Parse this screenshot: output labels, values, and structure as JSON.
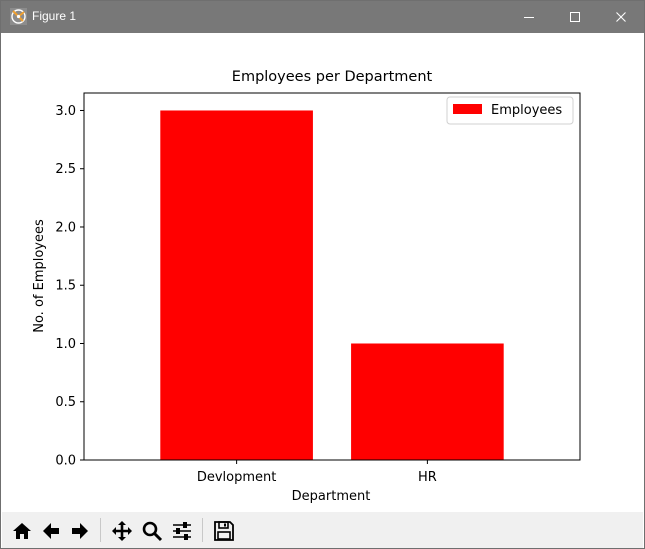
{
  "window": {
    "title": "Figure 1",
    "controls": [
      "minimize",
      "maximize",
      "close"
    ]
  },
  "toolbar": {
    "buttons": [
      {
        "name": "home",
        "icon": "home-icon"
      },
      {
        "name": "back",
        "icon": "arrow-left-icon"
      },
      {
        "name": "forward",
        "icon": "arrow-right-icon"
      },
      {
        "name": "pan",
        "icon": "move-icon"
      },
      {
        "name": "zoom",
        "icon": "magnifier-icon"
      },
      {
        "name": "configure",
        "icon": "sliders-icon"
      },
      {
        "name": "save",
        "icon": "floppy-disk-icon"
      }
    ]
  },
  "chart_data": {
    "type": "bar",
    "title": "Employees per Department",
    "xlabel": "Department",
    "ylabel": "No. of Employees",
    "categories": [
      "Devlopment",
      "HR"
    ],
    "series": [
      {
        "name": "Employees",
        "values": [
          3,
          1
        ],
        "color": "#ff0000"
      }
    ],
    "ylim": [
      0,
      3.15
    ],
    "yticks": [
      "0.0",
      "0.5",
      "1.0",
      "1.5",
      "2.0",
      "2.5",
      "3.0"
    ],
    "legend": "top-right",
    "grid": false
  }
}
